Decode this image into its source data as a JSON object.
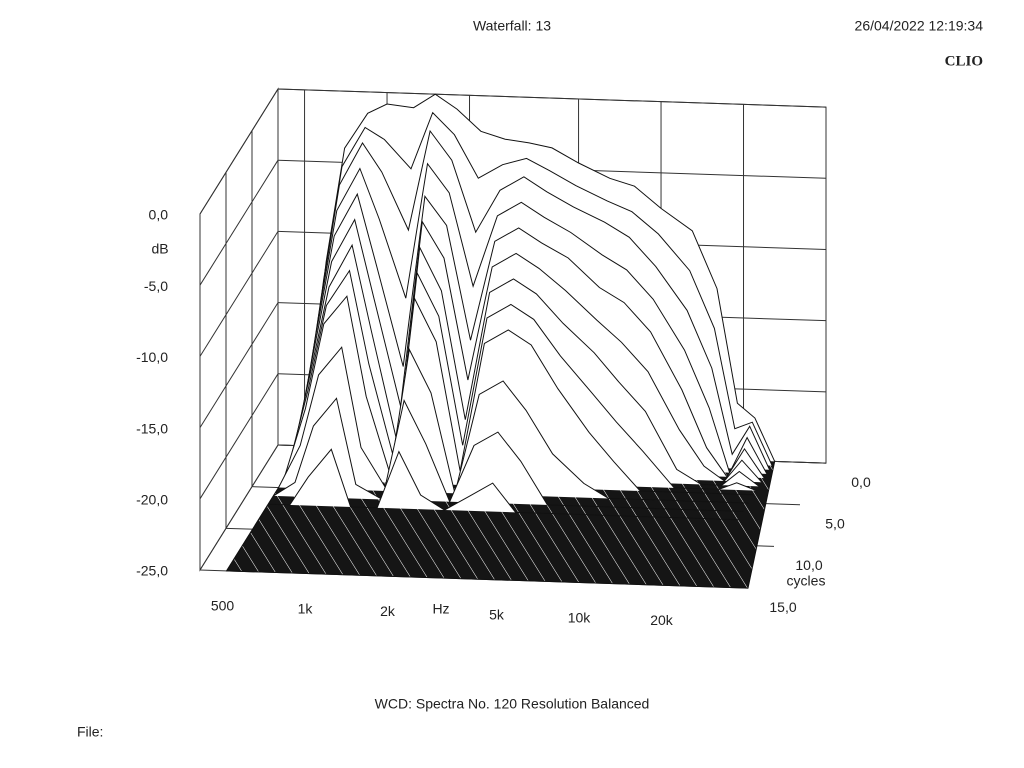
{
  "header": {
    "title": "Waterfall: 13",
    "timestamp": "26/04/2022 12:19:34",
    "brand": "CLIO"
  },
  "footer": {
    "caption": "WCD:   Spectra No. 120   Resolution Balanced",
    "file": "File:"
  },
  "chart_data": {
    "type": "waterfall",
    "y_label": "dB",
    "x_label": "Hz",
    "z_label": "cycles",
    "xscale": "log",
    "xlim": [
      400,
      40000
    ],
    "xticks": [
      500,
      {
        "value": 1000,
        "label": "1k"
      },
      {
        "value": 2000,
        "label": "2k"
      },
      {
        "value": 5000,
        "label": "5k"
      },
      {
        "value": 10000,
        "label": "10k"
      },
      {
        "value": 20000,
        "label": "20k"
      }
    ],
    "ylim": [
      -25,
      0
    ],
    "yticks": [
      {
        "value": 0,
        "label": "0,0"
      },
      {
        "value": -5,
        "label": "-5,0"
      },
      {
        "value": -10,
        "label": "-10,0"
      },
      {
        "value": -15,
        "label": "-15,0"
      },
      {
        "value": -20,
        "label": "-20,0"
      },
      {
        "value": -25,
        "label": "-25,0"
      }
    ],
    "zlim": [
      0,
      15
    ],
    "zticks": [
      {
        "value": 0,
        "label": "0,0"
      },
      {
        "value": 5,
        "label": "5,0"
      },
      {
        "value": 10,
        "label": "10,0"
      },
      {
        "value": 15,
        "label": "15,0"
      }
    ],
    "x": [
      500,
      600,
      700,
      850,
      1000,
      1250,
      1500,
      1800,
      2200,
      2700,
      3300,
      4000,
      5000,
      6500,
      8000,
      10000,
      13000,
      16000,
      19000,
      22000,
      26000
    ],
    "series": [
      {
        "cycles": 0,
        "values": [
          -25,
          -12,
          -4,
          -1.5,
          -0.8,
          -1,
          0,
          -1,
          -2.5,
          -3,
          -3.2,
          -3.5,
          -4.5,
          -5.5,
          -6,
          -7.5,
          -9,
          -13,
          -21,
          -22,
          -25
        ]
      },
      {
        "cycles": 0.5,
        "values": [
          -25,
          -13,
          -5,
          -2.2,
          -3,
          -5,
          -1,
          -2.5,
          -5.5,
          -4.5,
          -4,
          -4.8,
          -5.8,
          -6.8,
          -7.5,
          -9,
          -11.5,
          -15.5,
          -22.5,
          -22,
          -25
        ]
      },
      {
        "cycles": 1,
        "values": [
          -25,
          -14,
          -6,
          -3,
          -5,
          -9,
          -2,
          -4,
          -9,
          -6,
          -5,
          -6,
          -7,
          -8,
          -9,
          -11,
          -14,
          -18,
          -24,
          -22,
          -25
        ]
      },
      {
        "cycles": 1.5,
        "values": [
          -25,
          -15,
          -7.5,
          -4.5,
          -8,
          -13.5,
          -4,
          -6,
          -12.5,
          -7.5,
          -6.5,
          -7.5,
          -8.5,
          -10,
          -11,
          -13,
          -16.5,
          -20.5,
          -25,
          -22.5,
          -25
        ]
      },
      {
        "cycles": 2,
        "values": [
          -25,
          -16,
          -9,
          -6,
          -11,
          -18,
          -6,
          -8,
          -16,
          -9,
          -8,
          -9,
          -10,
          -12,
          -13,
          -15,
          -19,
          -23,
          -25,
          -23,
          -25
        ]
      },
      {
        "cycles": 2.5,
        "values": [
          -25,
          -17,
          -10.5,
          -7.5,
          -13,
          -20.5,
          -7.5,
          -10,
          -18.5,
          -10.5,
          -9.5,
          -10.5,
          -12,
          -14,
          -15.5,
          -17.5,
          -21.5,
          -24,
          -25,
          -23.5,
          -25
        ]
      },
      {
        "cycles": 3,
        "values": [
          -25,
          -18,
          -12,
          -9,
          -15,
          -23,
          -9,
          -12,
          -21,
          -12,
          -11,
          -12,
          -14,
          -16,
          -18,
          -20,
          -24,
          -25,
          -25,
          -24,
          -25
        ]
      },
      {
        "cycles": 3.5,
        "values": [
          -25,
          -19,
          -13,
          -10.5,
          -17,
          -24,
          -10.5,
          -13.5,
          -22.5,
          -13.5,
          -12.5,
          -13.5,
          -16,
          -18.5,
          -20.5,
          -22.5,
          -25,
          -25,
          -25,
          -24.5,
          -25
        ]
      },
      {
        "cycles": 4,
        "values": [
          -25,
          -20,
          -14,
          -12,
          -19,
          -25,
          -12,
          -15,
          -24,
          -15,
          -14,
          -15,
          -18,
          -21,
          -23,
          -25,
          -25,
          -25,
          -25,
          -25,
          -25
        ]
      },
      {
        "cycles": 5,
        "values": [
          -25,
          -22,
          -17,
          -15,
          -22,
          -25,
          -15,
          -18,
          -25,
          -18,
          -17,
          -19,
          -22,
          -24,
          -25,
          -25,
          -25,
          -25,
          -25,
          -25,
          -25
        ]
      },
      {
        "cycles": 6,
        "values": [
          -25,
          -24,
          -20,
          -18,
          -24,
          -25,
          -18,
          -21,
          -25,
          -21,
          -20,
          -22,
          -25,
          -25,
          -25,
          -25,
          -25,
          -25,
          -25,
          -25,
          -25
        ]
      },
      {
        "cycles": 7,
        "values": [
          -25,
          -25,
          -23,
          -21,
          -25,
          -25,
          -21,
          -24,
          -25,
          -24,
          -23,
          -25,
          -25,
          -25,
          -25,
          -25,
          -25,
          -25,
          -25,
          -25,
          -25
        ]
      }
    ]
  }
}
